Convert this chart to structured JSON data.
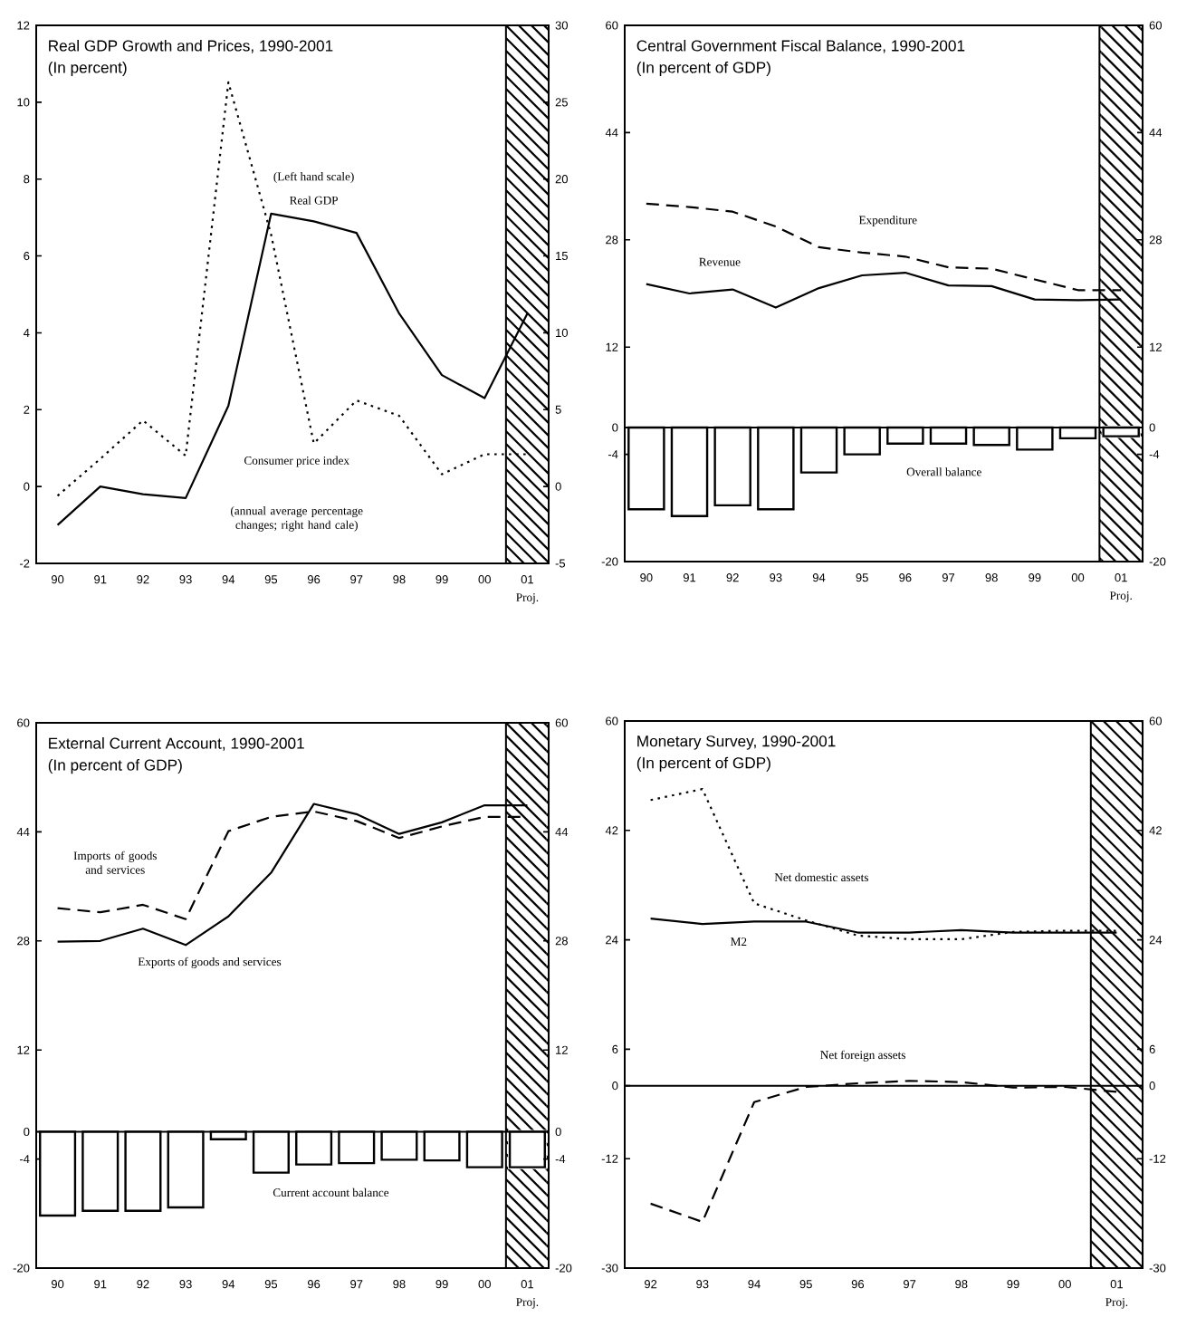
{
  "chart_data": [
    {
      "type": "line",
      "title": "Real GDP Growth and Prices, 1990-2001",
      "subtitle": "(In percent)",
      "categories": [
        "90",
        "91",
        "92",
        "93",
        "94",
        "95",
        "96",
        "97",
        "98",
        "99",
        "00",
        "01"
      ],
      "series": [
        {
          "name": "Real GDP",
          "color": "#000000",
          "line_style": "solid",
          "values": [
            -1.0,
            0.0,
            -0.2,
            -0.3,
            2.1,
            7.1,
            6.9,
            6.6,
            4.5,
            2.9,
            2.3,
            4.5
          ]
        },
        {
          "name": "Consumer price index",
          "axis": "y2",
          "color": "#000000",
          "line_style": "dotted",
          "values": [
            -0.6,
            1.8,
            4.3,
            2.0,
            26.3,
            16.4,
            2.8,
            5.6,
            4.6,
            0.8,
            2.1,
            2.1
          ]
        }
      ],
      "ylim": [
        -2,
        12
      ],
      "yticks": [
        -2,
        0,
        2,
        4,
        6,
        8,
        10,
        12
      ],
      "y2lim": [
        -5,
        30
      ],
      "y2ticks": [
        -5,
        0,
        5,
        10,
        15,
        20,
        25,
        30
      ],
      "annotations": [
        "(Left hand scale)",
        "(annual average percentage changes; right hand cale)",
        "Proj."
      ]
    },
    {
      "type": "line",
      "title": "Central Government Fiscal Balance, 1990-2001",
      "subtitle": "(In percent of GDP)",
      "categories": [
        "90",
        "91",
        "92",
        "93",
        "94",
        "95",
        "96",
        "97",
        "98",
        "99",
        "00",
        "01"
      ],
      "series": [
        {
          "name": "Expenditure",
          "color": "#000000",
          "line_style": "dashed",
          "values": [
            33.4,
            32.9,
            32.2,
            30.0,
            26.9,
            26.1,
            25.5,
            23.9,
            23.7,
            22.1,
            20.5,
            20.5
          ]
        },
        {
          "name": "Revenue",
          "color": "#000000",
          "line_style": "solid",
          "values": [
            21.4,
            20.0,
            20.6,
            17.9,
            20.8,
            22.7,
            23.1,
            21.2,
            21.1,
            19.1,
            19.0,
            19.1
          ]
        },
        {
          "name": "Overall balance",
          "type": "bar",
          "color": "#000000",
          "values": [
            -12.2,
            -13.2,
            -11.6,
            -12.2,
            -6.7,
            -4.0,
            -2.4,
            -2.4,
            -2.6,
            -3.3,
            -1.6,
            -1.3
          ]
        }
      ],
      "ylim": [
        -20,
        60
      ],
      "yticks": [
        -20,
        -4,
        0,
        12,
        28,
        44,
        60
      ],
      "y2lim": [
        -20,
        60
      ],
      "y2ticks": [
        -20,
        -4,
        0,
        12,
        28,
        44,
        60
      ],
      "ref_lines": [
        {
          "axis": "y",
          "value": 0
        }
      ],
      "annotations": [
        "Proj."
      ]
    },
    {
      "type": "line",
      "title": "External Current Account, 1990-2001",
      "subtitle": "(In percent of GDP)",
      "categories": [
        "90",
        "91",
        "92",
        "93",
        "94",
        "95",
        "96",
        "97",
        "98",
        "99",
        "00",
        "01"
      ],
      "series": [
        {
          "name": "Imports of goods and services",
          "color": "#000000",
          "line_style": "dashed",
          "values": [
            32.8,
            32.2,
            33.3,
            31.2,
            44.1,
            46.2,
            47.0,
            45.6,
            43.1,
            44.8,
            46.2,
            46.2
          ]
        },
        {
          "name": "Exports of goods and services",
          "color": "#000000",
          "line_style": "solid",
          "values": [
            27.9,
            28.0,
            29.8,
            27.4,
            31.6,
            38.0,
            48.1,
            46.6,
            43.7,
            45.4,
            47.9,
            47.9
          ]
        },
        {
          "name": "Current account balance",
          "type": "bar",
          "color": "#000000",
          "values": [
            -12.3,
            -11.6,
            -11.6,
            -11.1,
            -1.1,
            -6.0,
            -4.8,
            -4.6,
            -4.1,
            -4.2,
            -5.2,
            -5.2
          ]
        }
      ],
      "ylim": [
        -20,
        60
      ],
      "yticks": [
        -20,
        -4,
        0,
        12,
        28,
        44,
        60
      ],
      "y2lim": [
        -20,
        60
      ],
      "y2ticks": [
        -20,
        -4,
        0,
        12,
        28,
        44,
        60
      ],
      "ref_lines": [
        {
          "axis": "y",
          "value": 0
        }
      ],
      "annotations": [
        "Proj."
      ]
    },
    {
      "type": "line",
      "title": "Monetary Survey, 1990-2001",
      "subtitle": "(In percent of GDP)",
      "categories": [
        "92",
        "93",
        "94",
        "95",
        "96",
        "97",
        "98",
        "99",
        "00",
        "01"
      ],
      "series": [
        {
          "name": "Net domestic assets",
          "color": "#000000",
          "line_style": "dotted",
          "values": [
            47.0,
            48.8,
            30.0,
            27.2,
            24.7,
            24.1,
            24.1,
            25.3,
            25.5,
            25.5
          ]
        },
        {
          "name": "M2",
          "color": "#000000",
          "line_style": "solid",
          "values": [
            27.5,
            26.6,
            27.0,
            27.0,
            25.2,
            25.2,
            25.6,
            25.2,
            25.2,
            25.2
          ]
        },
        {
          "name": "Net foreign assets",
          "color": "#000000",
          "line_style": "dashed",
          "values": [
            -19.4,
            -22.4,
            -2.7,
            -0.2,
            0.4,
            0.8,
            0.6,
            -0.3,
            -0.2,
            -1.0
          ]
        }
      ],
      "ylim": [
        -30,
        60
      ],
      "yticks": [
        -30,
        -12,
        0,
        6,
        24,
        42,
        60
      ],
      "y2lim": [
        -30,
        60
      ],
      "y2ticks": [
        -30,
        -12,
        0,
        6,
        24,
        42,
        60
      ],
      "ref_lines": [
        {
          "axis": "y",
          "value": 0
        }
      ],
      "annotations": [
        "Proj."
      ]
    }
  ]
}
